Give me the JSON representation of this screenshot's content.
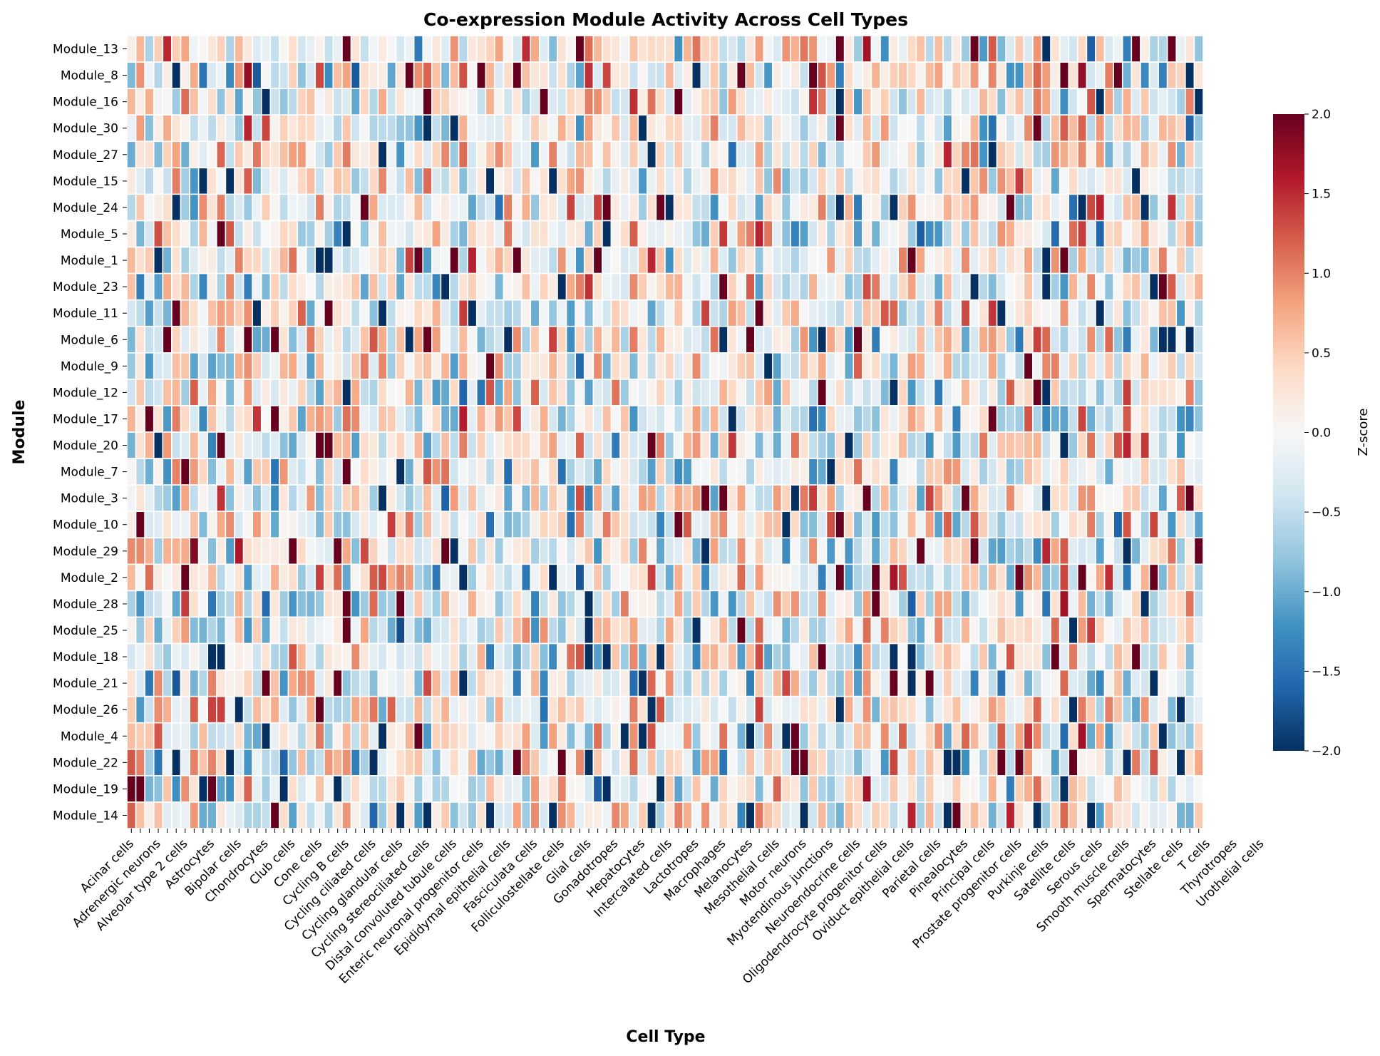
{
  "chart_data": {
    "type": "heatmap",
    "title": "Co-expression Module Activity Across Cell Types",
    "xlabel": "Cell Type",
    "ylabel": "Module",
    "rows": [
      "Module_13",
      "Module_8",
      "Module_16",
      "Module_30",
      "Module_27",
      "Module_15",
      "Module_24",
      "Module_5",
      "Module_1",
      "Module_23",
      "Module_11",
      "Module_6",
      "Module_9",
      "Module_12",
      "Module_17",
      "Module_20",
      "Module_7",
      "Module_3",
      "Module_10",
      "Module_29",
      "Module_2",
      "Module_28",
      "Module_25",
      "Module_18",
      "Module_21",
      "Module_26",
      "Module_4",
      "Module_22",
      "Module_19",
      "Module_14"
    ],
    "column_count": 120,
    "x_tick_labels": [
      "Acinar cells",
      "Adrenergic neurons",
      "Alveolar type 2 cells",
      "Astrocytes",
      "Bipolar cells",
      "Chondrocytes",
      "Club cells",
      "Cone cells",
      "Cycling B cells",
      "Cycling ciliated cells",
      "Cycling glandular cells",
      "Cycling stereociliated cells",
      "Distal convoluted tubule cells",
      "Enteric neuronal progenitor cells",
      "Epididymal epithelial cells",
      "Fasciculata cells",
      "Folliculostellate cells",
      "Glial cells",
      "Gonadotropes",
      "Hepatocytes",
      "Intercalated cells",
      "Lactotropes",
      "Macrophages",
      "Melanocytes",
      "Mesothelial cells",
      "Motor neurons",
      "Myotendinous junctions",
      "Neuroendocrine cells",
      "Oligodendrocyte progenitor cells",
      "Oviduct epithelial cells",
      "Parietal cells",
      "Pinealocytes",
      "Principal cells",
      "Prostate progenitor cells",
      "Purkinje cells",
      "Satellite cells",
      "Serous cells",
      "Smooth muscle cells",
      "Spermatocytes",
      "Stellate cells",
      "T cells",
      "Thyrotropes",
      "Urothelial cells"
    ],
    "colorbar": {
      "label": "Z-score",
      "vmin": -2.0,
      "vmax": 2.0,
      "ticks": [
        "−2.0",
        "−1.5",
        "−1.0",
        "−0.5",
        "0.0",
        "0.5",
        "1.0",
        "1.5",
        "2.0"
      ],
      "colormap": [
        "#053061",
        "#2166ac",
        "#4393c3",
        "#92c5de",
        "#d1e5f0",
        "#f7f7f7",
        "#fddbc7",
        "#f4a582",
        "#d6604d",
        "#b2182b",
        "#67001f"
      ]
    },
    "values": "Pseudo-random z-scores in [-2, 2] drawn by script"
  }
}
